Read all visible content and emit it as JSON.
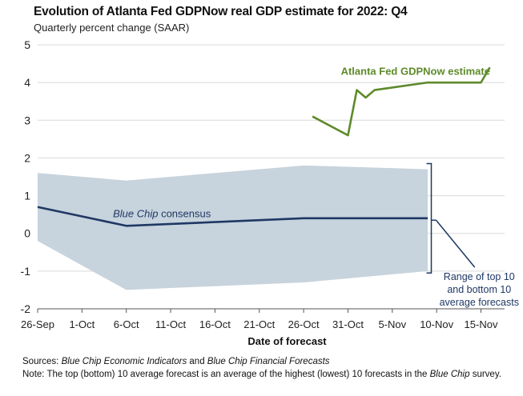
{
  "chart_data": {
    "type": "line",
    "title": "Evolution of Atlanta Fed GDPNow real GDP estimate for 2022: Q4",
    "subtitle": "Quarterly percent change (SAAR)",
    "xlabel": "Date of forecast",
    "ylabel": "",
    "ylim": [
      -2,
      5
    ],
    "y_ticks": [
      -2,
      -1,
      0,
      1,
      2,
      3,
      4,
      5
    ],
    "x_ticks": [
      {
        "day": 0,
        "label": "26-Sep"
      },
      {
        "day": 5,
        "label": "1-Oct"
      },
      {
        "day": 10,
        "label": "6-Oct"
      },
      {
        "day": 15,
        "label": "11-Oct"
      },
      {
        "day": 20,
        "label": "16-Oct"
      },
      {
        "day": 25,
        "label": "21-Oct"
      },
      {
        "day": 30,
        "label": "26-Oct"
      },
      {
        "day": 35,
        "label": "31-Oct"
      },
      {
        "day": 40,
        "label": "5-Nov"
      },
      {
        "day": 45,
        "label": "10-Nov"
      },
      {
        "day": 50,
        "label": "15-Nov"
      }
    ],
    "grid": true,
    "series": [
      {
        "name": "Atlanta Fed GDPNow estimate",
        "label": "Atlanta Fed GDPNow estimate",
        "color": "#5e8a2a",
        "points": [
          [
            31,
            3.1
          ],
          [
            35,
            2.6
          ],
          [
            36,
            3.8
          ],
          [
            37,
            3.6
          ],
          [
            38,
            3.8
          ],
          [
            44,
            4.0
          ],
          [
            50,
            4.0
          ],
          [
            51,
            4.4
          ]
        ]
      },
      {
        "name": "Blue Chip consensus",
        "label_italic": "Blue Chip",
        "label_rest": " consensus",
        "color": "#1f3864",
        "points": [
          [
            0,
            0.7
          ],
          [
            10,
            0.2
          ],
          [
            30,
            0.4
          ],
          [
            44,
            0.4
          ]
        ]
      }
    ],
    "band": {
      "name": "Range of top 10 and bottom 10 average forecasts",
      "label_lines": [
        "Range of top 10",
        "and bottom 10",
        "average forecasts"
      ],
      "color": "#c7d3dd",
      "upper": [
        [
          0,
          1.6
        ],
        [
          10,
          1.4
        ],
        [
          30,
          1.8
        ],
        [
          44,
          1.7
        ]
      ],
      "lower": [
        [
          0,
          -0.2
        ],
        [
          10,
          -1.5
        ],
        [
          30,
          -1.3
        ],
        [
          44,
          -1.0
        ]
      ]
    }
  },
  "notes": {
    "sources_label": "Sources:",
    "sources_italic_1": "Blue Chip Economic Indicators",
    "sources_and": " and ",
    "sources_italic_2": "Blue Chip Financial Forecasts",
    "note_label": "Note:",
    "note_text": " The top (bottom) 10 average forecast is an average of the highest (lowest) 10 forecasts in the ",
    "note_italic": "Blue Chip",
    "note_end": " survey."
  }
}
